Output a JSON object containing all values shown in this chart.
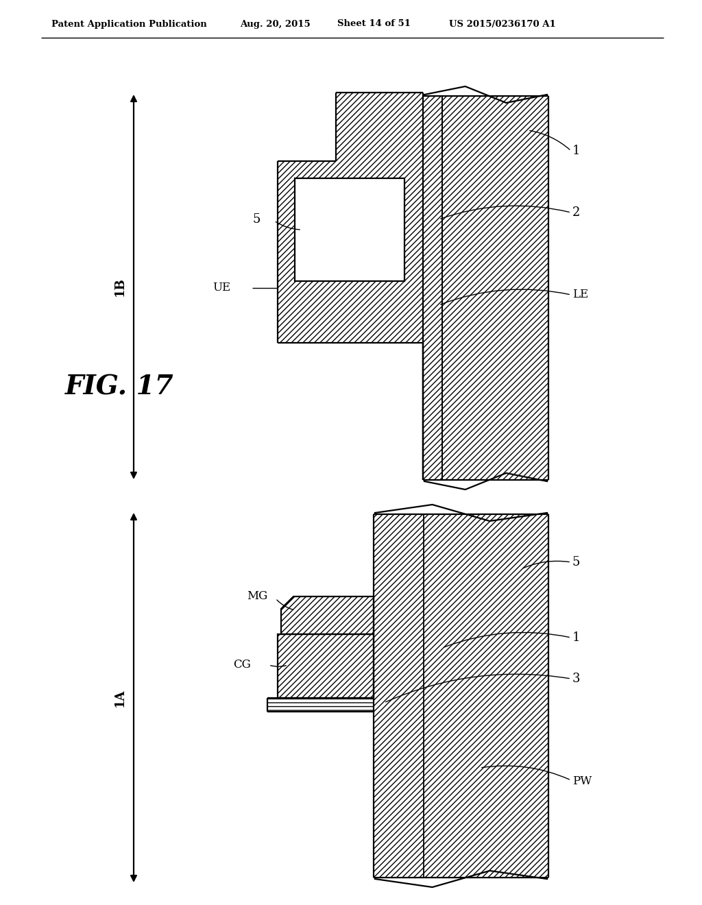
{
  "bg_color": "#ffffff",
  "line_color": "#000000",
  "header_text": "Patent Application Publication",
  "header_date": "Aug. 20, 2015",
  "header_sheet": "Sheet 14 of 51",
  "header_patent": "US 2015/0236170 A1",
  "fig_label": "FIG. 17",
  "label_1B": "1B",
  "label_1A": "1A",
  "label_1_top": "1",
  "label_2": "2",
  "label_5_top": "5",
  "label_UE": "UE",
  "label_LE": "LE",
  "label_MG": "MG",
  "label_CG": "CG",
  "label_1_bot": "1",
  "label_3": "3",
  "label_5_bot": "5",
  "label_PW": "PW"
}
